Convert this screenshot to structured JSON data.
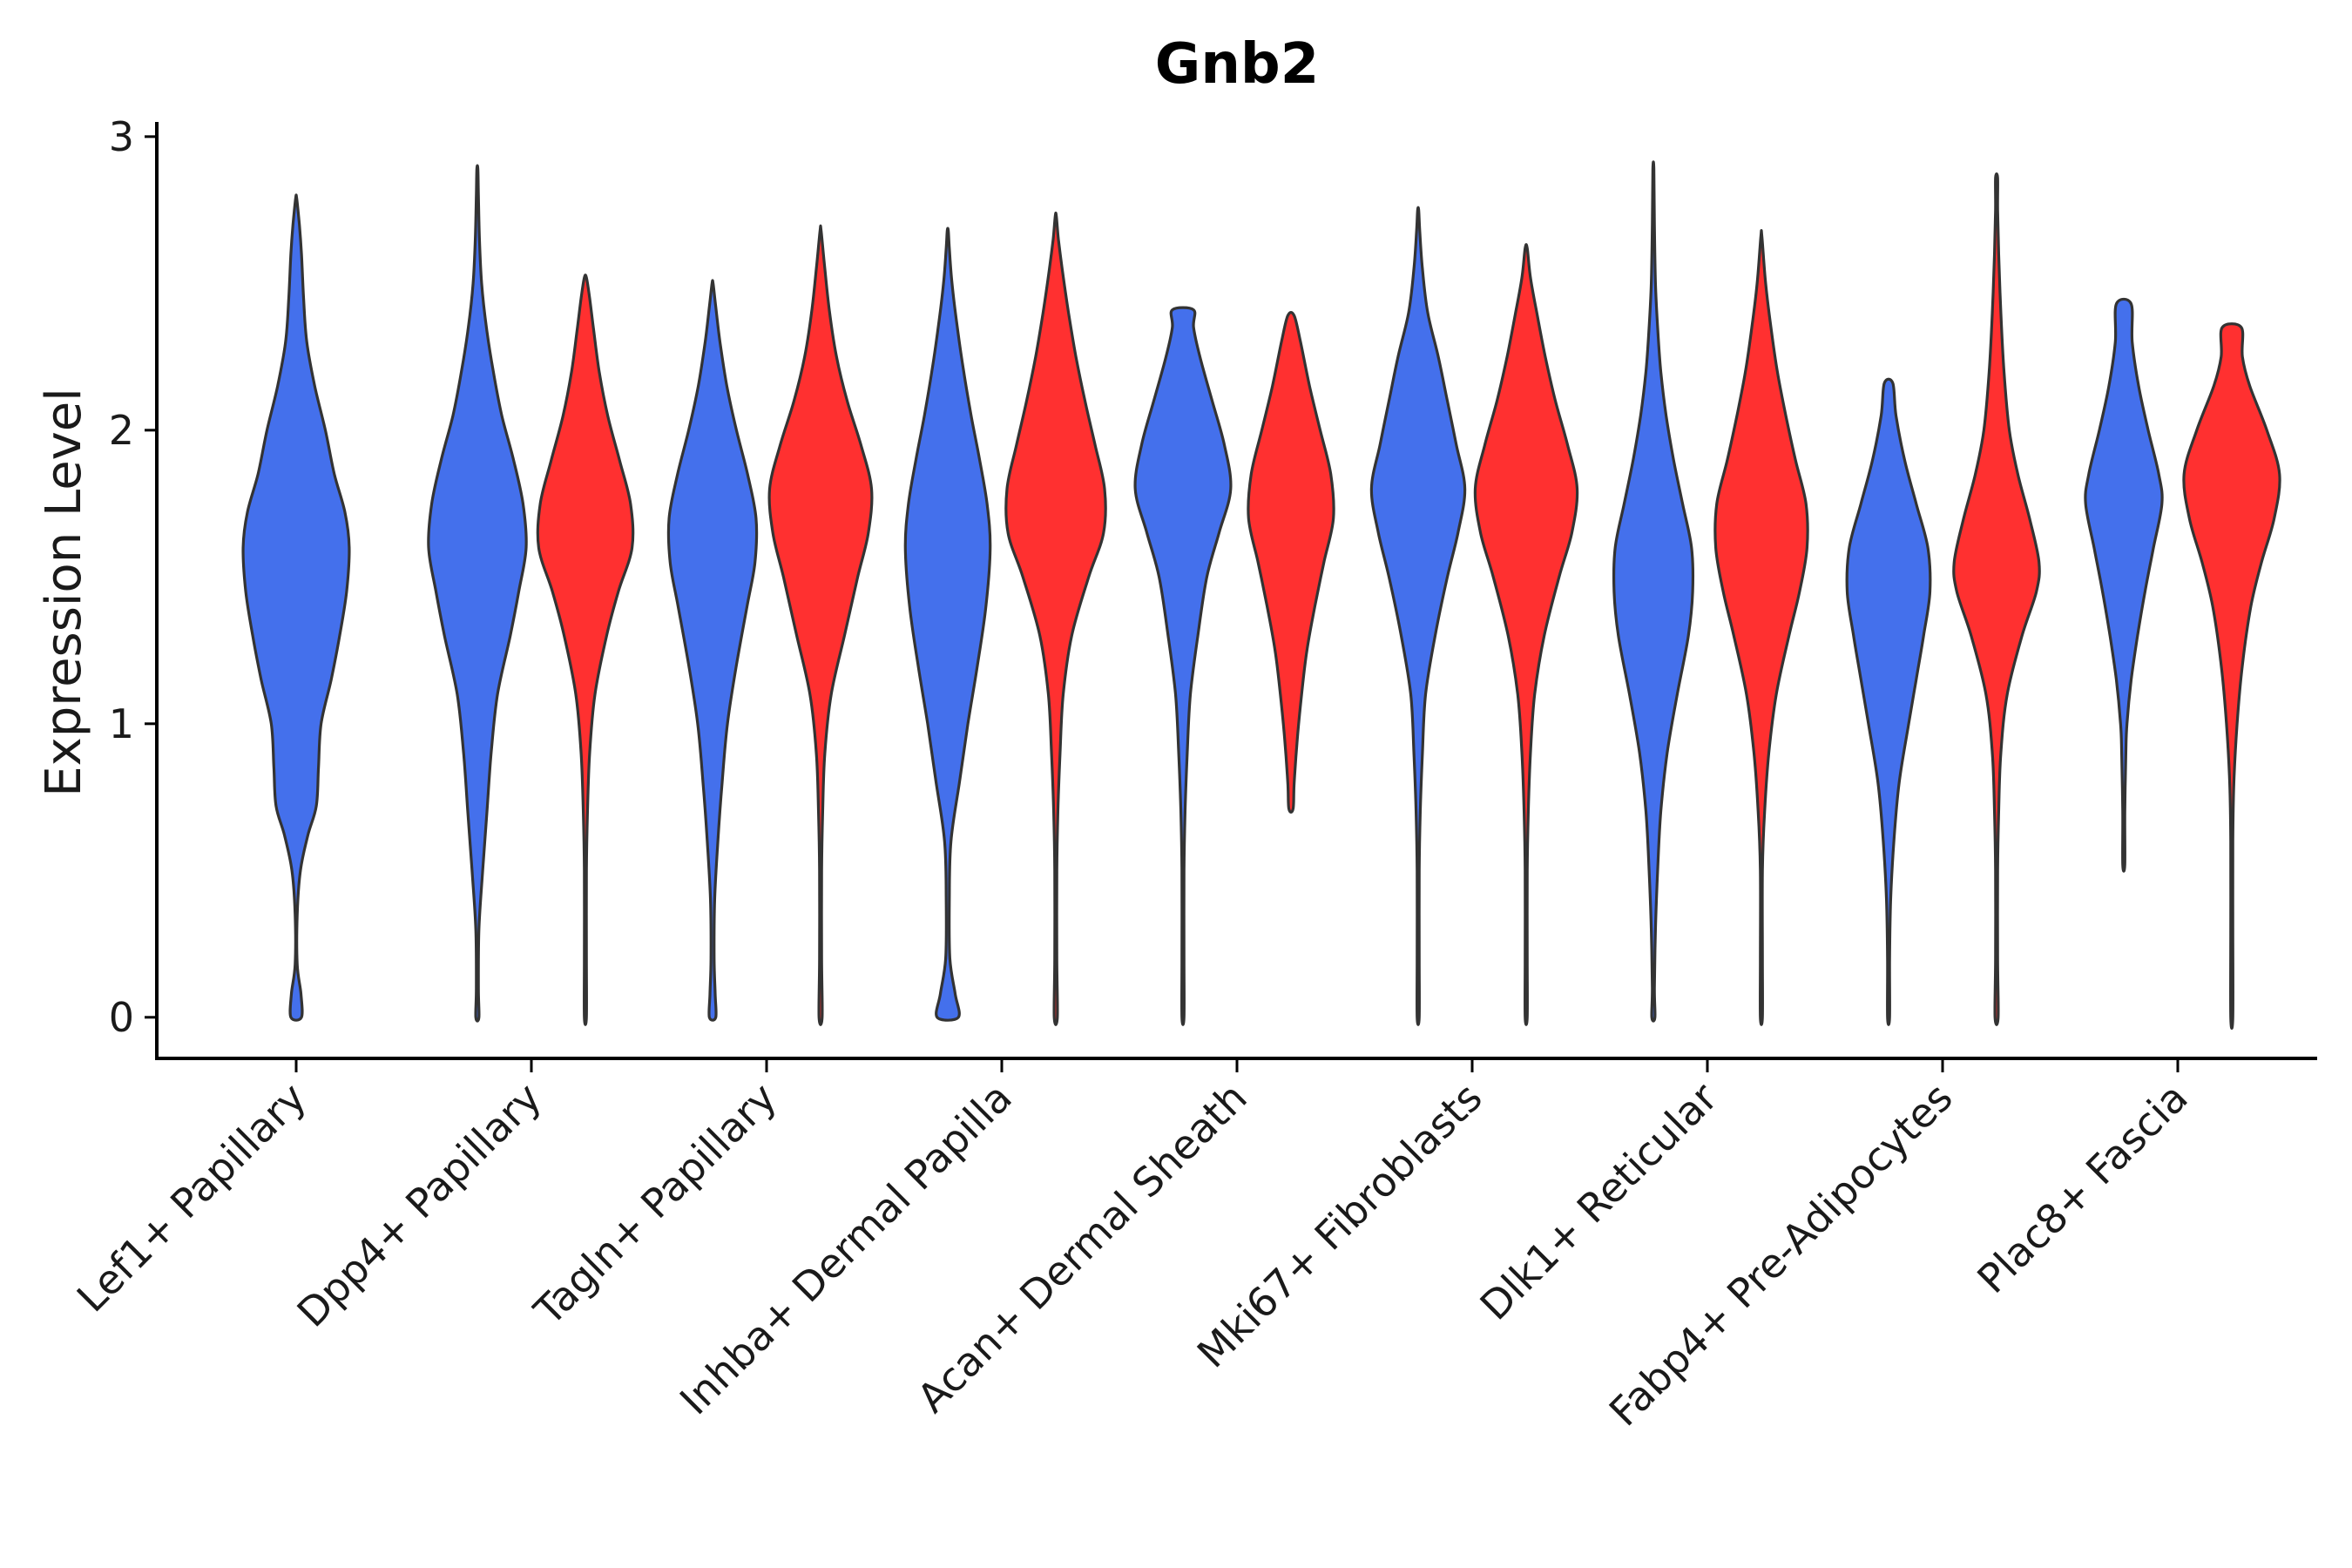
{
  "chart_data": {
    "type": "violin",
    "title": "Gnb2",
    "xlabel": "",
    "ylabel": "Expression Level",
    "ylim": [
      -0.14,
      3.05
    ],
    "yticks": [
      0,
      1,
      2,
      3
    ],
    "grid": false,
    "legend": "none",
    "series_colors": [
      "#4470EC",
      "#FF3030"
    ],
    "categories": [
      "Lef1+ Papillary",
      "Dpp4+ Papillary",
      "Tagln+ Papillary",
      "Inhba+ Dermal Papilla",
      "Acan+ Dermal Sheath",
      "Mki67+ Fibroblasts",
      "Dlk1+ Reticular",
      "Fabp4+ Pre-Adipocytes",
      "Plac8+ Fascia"
    ],
    "violins": [
      {
        "category": "Lef1+ Papillary",
        "group": 1,
        "min": 0.0,
        "max": 2.79,
        "profile": [
          [
            0.0,
            0.1
          ],
          [
            0.08,
            0.09
          ],
          [
            0.18,
            0.02
          ],
          [
            0.35,
            0.02
          ],
          [
            0.5,
            0.08
          ],
          [
            0.62,
            0.22
          ],
          [
            0.72,
            0.38
          ],
          [
            0.85,
            0.42
          ],
          [
            1.0,
            0.47
          ],
          [
            1.15,
            0.66
          ],
          [
            1.3,
            0.82
          ],
          [
            1.45,
            0.95
          ],
          [
            1.6,
            1.0
          ],
          [
            1.72,
            0.92
          ],
          [
            1.85,
            0.72
          ],
          [
            2.0,
            0.55
          ],
          [
            2.15,
            0.35
          ],
          [
            2.3,
            0.2
          ],
          [
            2.45,
            0.14
          ],
          [
            2.6,
            0.1
          ],
          [
            2.7,
            0.06
          ],
          [
            2.79,
            0.01
          ]
        ]
      },
      {
        "category": "Dpp4+ Papillary",
        "group": 1,
        "min": 0.0,
        "max": 2.89,
        "profile": [
          [
            0.0,
            0.03
          ],
          [
            0.1,
            0.02
          ],
          [
            0.3,
            0.03
          ],
          [
            0.5,
            0.1
          ],
          [
            0.7,
            0.18
          ],
          [
            0.9,
            0.26
          ],
          [
            1.1,
            0.38
          ],
          [
            1.3,
            0.62
          ],
          [
            1.45,
            0.78
          ],
          [
            1.6,
            0.92
          ],
          [
            1.75,
            0.86
          ],
          [
            1.9,
            0.68
          ],
          [
            2.05,
            0.46
          ],
          [
            2.2,
            0.3
          ],
          [
            2.35,
            0.17
          ],
          [
            2.5,
            0.08
          ],
          [
            2.65,
            0.04
          ],
          [
            2.8,
            0.02
          ],
          [
            2.89,
            0.01
          ]
        ]
      },
      {
        "category": "Dpp4+ Papillary",
        "group": 2,
        "min": 0.0,
        "max": 2.52,
        "profile": [
          [
            0.0,
            0.02
          ],
          [
            0.2,
            0.02
          ],
          [
            0.5,
            0.02
          ],
          [
            0.7,
            0.04
          ],
          [
            0.9,
            0.08
          ],
          [
            1.1,
            0.18
          ],
          [
            1.3,
            0.4
          ],
          [
            1.45,
            0.62
          ],
          [
            1.6,
            0.88
          ],
          [
            1.75,
            0.85
          ],
          [
            1.9,
            0.64
          ],
          [
            2.05,
            0.42
          ],
          [
            2.2,
            0.26
          ],
          [
            2.35,
            0.15
          ],
          [
            2.45,
            0.08
          ],
          [
            2.52,
            0.02
          ]
        ]
      },
      {
        "category": "Tagln+ Papillary",
        "group": 1,
        "min": 0.0,
        "max": 2.5,
        "profile": [
          [
            0.0,
            0.06
          ],
          [
            0.08,
            0.05
          ],
          [
            0.2,
            0.03
          ],
          [
            0.4,
            0.04
          ],
          [
            0.6,
            0.1
          ],
          [
            0.8,
            0.18
          ],
          [
            1.0,
            0.28
          ],
          [
            1.2,
            0.45
          ],
          [
            1.4,
            0.65
          ],
          [
            1.55,
            0.8
          ],
          [
            1.7,
            0.82
          ],
          [
            1.85,
            0.66
          ],
          [
            2.0,
            0.45
          ],
          [
            2.15,
            0.27
          ],
          [
            2.3,
            0.14
          ],
          [
            2.42,
            0.06
          ],
          [
            2.5,
            0.01
          ]
        ]
      },
      {
        "category": "Tagln+ Papillary",
        "group": 2,
        "min": 0.0,
        "max": 2.68,
        "profile": [
          [
            0.0,
            0.03
          ],
          [
            0.2,
            0.02
          ],
          [
            0.5,
            0.02
          ],
          [
            0.7,
            0.04
          ],
          [
            0.9,
            0.08
          ],
          [
            1.1,
            0.2
          ],
          [
            1.3,
            0.45
          ],
          [
            1.5,
            0.7
          ],
          [
            1.65,
            0.9
          ],
          [
            1.8,
            0.96
          ],
          [
            1.95,
            0.76
          ],
          [
            2.1,
            0.5
          ],
          [
            2.25,
            0.3
          ],
          [
            2.4,
            0.17
          ],
          [
            2.55,
            0.08
          ],
          [
            2.68,
            0.01
          ]
        ]
      },
      {
        "category": "Inhba+ Dermal Papilla",
        "group": 1,
        "min": 0.0,
        "max": 2.68,
        "profile": [
          [
            0.0,
            0.2
          ],
          [
            0.08,
            0.14
          ],
          [
            0.2,
            0.04
          ],
          [
            0.4,
            0.03
          ],
          [
            0.6,
            0.06
          ],
          [
            0.8,
            0.22
          ],
          [
            1.0,
            0.38
          ],
          [
            1.2,
            0.56
          ],
          [
            1.4,
            0.72
          ],
          [
            1.6,
            0.8
          ],
          [
            1.75,
            0.74
          ],
          [
            1.9,
            0.6
          ],
          [
            2.05,
            0.44
          ],
          [
            2.2,
            0.3
          ],
          [
            2.35,
            0.18
          ],
          [
            2.5,
            0.08
          ],
          [
            2.62,
            0.03
          ],
          [
            2.68,
            0.01
          ]
        ]
      },
      {
        "category": "Inhba+ Dermal Papilla",
        "group": 2,
        "min": 0.0,
        "max": 2.73,
        "profile": [
          [
            0.0,
            0.03
          ],
          [
            0.2,
            0.02
          ],
          [
            0.5,
            0.02
          ],
          [
            0.7,
            0.04
          ],
          [
            0.9,
            0.08
          ],
          [
            1.1,
            0.14
          ],
          [
            1.3,
            0.3
          ],
          [
            1.5,
            0.62
          ],
          [
            1.65,
            0.9
          ],
          [
            1.8,
            0.92
          ],
          [
            1.95,
            0.74
          ],
          [
            2.1,
            0.55
          ],
          [
            2.25,
            0.38
          ],
          [
            2.4,
            0.24
          ],
          [
            2.55,
            0.12
          ],
          [
            2.65,
            0.05
          ],
          [
            2.73,
            0.01
          ]
        ]
      },
      {
        "category": "Acan+ Dermal Sheath",
        "group": 1,
        "min": 0.0,
        "max": 2.41,
        "profile": [
          [
            0.0,
            0.02
          ],
          [
            0.2,
            0.02
          ],
          [
            0.5,
            0.02
          ],
          [
            0.7,
            0.04
          ],
          [
            0.9,
            0.08
          ],
          [
            1.1,
            0.14
          ],
          [
            1.3,
            0.28
          ],
          [
            1.5,
            0.45
          ],
          [
            1.65,
            0.68
          ],
          [
            1.8,
            0.9
          ],
          [
            1.95,
            0.78
          ],
          [
            2.1,
            0.55
          ],
          [
            2.25,
            0.32
          ],
          [
            2.35,
            0.2
          ],
          [
            2.41,
            0.2
          ]
        ]
      },
      {
        "category": "Acan+ Dermal Sheath",
        "group": 2,
        "min": 0.71,
        "max": 2.39,
        "profile": [
          [
            0.71,
            0.04
          ],
          [
            0.8,
            0.06
          ],
          [
            0.95,
            0.12
          ],
          [
            1.1,
            0.2
          ],
          [
            1.25,
            0.3
          ],
          [
            1.4,
            0.45
          ],
          [
            1.55,
            0.62
          ],
          [
            1.7,
            0.8
          ],
          [
            1.85,
            0.75
          ],
          [
            2.0,
            0.55
          ],
          [
            2.15,
            0.35
          ],
          [
            2.3,
            0.18
          ],
          [
            2.39,
            0.06
          ]
        ]
      },
      {
        "category": "Mki67+ Fibroblasts",
        "group": 1,
        "min": 0.0,
        "max": 2.75,
        "profile": [
          [
            0.0,
            0.02
          ],
          [
            0.2,
            0.02
          ],
          [
            0.5,
            0.02
          ],
          [
            0.7,
            0.04
          ],
          [
            0.9,
            0.08
          ],
          [
            1.1,
            0.14
          ],
          [
            1.3,
            0.32
          ],
          [
            1.5,
            0.55
          ],
          [
            1.65,
            0.75
          ],
          [
            1.8,
            0.88
          ],
          [
            1.95,
            0.72
          ],
          [
            2.1,
            0.55
          ],
          [
            2.25,
            0.38
          ],
          [
            2.4,
            0.18
          ],
          [
            2.55,
            0.08
          ],
          [
            2.68,
            0.03
          ],
          [
            2.75,
            0.01
          ]
        ]
      },
      {
        "category": "Mki67+ Fibroblasts",
        "group": 2,
        "min": 0.0,
        "max": 2.62,
        "profile": [
          [
            0.0,
            0.02
          ],
          [
            0.2,
            0.02
          ],
          [
            0.5,
            0.02
          ],
          [
            0.7,
            0.04
          ],
          [
            0.9,
            0.08
          ],
          [
            1.1,
            0.16
          ],
          [
            1.3,
            0.34
          ],
          [
            1.5,
            0.62
          ],
          [
            1.65,
            0.86
          ],
          [
            1.8,
            0.96
          ],
          [
            1.95,
            0.78
          ],
          [
            2.1,
            0.55
          ],
          [
            2.25,
            0.36
          ],
          [
            2.4,
            0.2
          ],
          [
            2.52,
            0.08
          ],
          [
            2.62,
            0.02
          ]
        ]
      },
      {
        "category": "Dlk1+ Reticular",
        "group": 1,
        "min": 0.0,
        "max": 2.89,
        "profile": [
          [
            0.0,
            0.03
          ],
          [
            0.1,
            0.02
          ],
          [
            0.3,
            0.04
          ],
          [
            0.5,
            0.08
          ],
          [
            0.7,
            0.14
          ],
          [
            0.9,
            0.26
          ],
          [
            1.1,
            0.45
          ],
          [
            1.3,
            0.66
          ],
          [
            1.45,
            0.74
          ],
          [
            1.6,
            0.72
          ],
          [
            1.75,
            0.55
          ],
          [
            1.9,
            0.38
          ],
          [
            2.05,
            0.24
          ],
          [
            2.2,
            0.14
          ],
          [
            2.35,
            0.08
          ],
          [
            2.5,
            0.04
          ],
          [
            2.7,
            0.02
          ],
          [
            2.89,
            0.01
          ]
        ]
      },
      {
        "category": "Dlk1+ Reticular",
        "group": 2,
        "min": 0.0,
        "max": 2.66,
        "profile": [
          [
            0.0,
            0.02
          ],
          [
            0.2,
            0.02
          ],
          [
            0.5,
            0.02
          ],
          [
            0.7,
            0.06
          ],
          [
            0.9,
            0.14
          ],
          [
            1.1,
            0.28
          ],
          [
            1.3,
            0.52
          ],
          [
            1.45,
            0.72
          ],
          [
            1.6,
            0.86
          ],
          [
            1.75,
            0.84
          ],
          [
            1.9,
            0.64
          ],
          [
            2.05,
            0.46
          ],
          [
            2.2,
            0.3
          ],
          [
            2.35,
            0.18
          ],
          [
            2.5,
            0.08
          ],
          [
            2.66,
            0.01
          ]
        ]
      },
      {
        "category": "Fabp4+ Pre-Adipocytes",
        "group": 1,
        "min": 0.0,
        "max": 2.16,
        "profile": [
          [
            0.0,
            0.02
          ],
          [
            0.2,
            0.02
          ],
          [
            0.4,
            0.04
          ],
          [
            0.6,
            0.1
          ],
          [
            0.8,
            0.2
          ],
          [
            1.0,
            0.38
          ],
          [
            1.15,
            0.52
          ],
          [
            1.3,
            0.66
          ],
          [
            1.45,
            0.78
          ],
          [
            1.6,
            0.74
          ],
          [
            1.75,
            0.52
          ],
          [
            1.9,
            0.3
          ],
          [
            2.05,
            0.14
          ],
          [
            2.16,
            0.08
          ]
        ]
      },
      {
        "category": "Fabp4+ Pre-Adipocytes",
        "group": 2,
        "min": 0.0,
        "max": 2.86,
        "profile": [
          [
            0.0,
            0.03
          ],
          [
            0.2,
            0.02
          ],
          [
            0.5,
            0.02
          ],
          [
            0.7,
            0.04
          ],
          [
            0.9,
            0.08
          ],
          [
            1.1,
            0.2
          ],
          [
            1.3,
            0.48
          ],
          [
            1.45,
            0.75
          ],
          [
            1.55,
            0.8
          ],
          [
            1.7,
            0.62
          ],
          [
            1.85,
            0.4
          ],
          [
            2.0,
            0.24
          ],
          [
            2.2,
            0.14
          ],
          [
            2.4,
            0.08
          ],
          [
            2.6,
            0.04
          ],
          [
            2.75,
            0.02
          ],
          [
            2.86,
            0.02
          ]
        ]
      },
      {
        "category": "Plac8+ Fascia",
        "group": 1,
        "min": 0.52,
        "max": 2.43,
        "profile": [
          [
            0.52,
            0.02
          ],
          [
            0.7,
            0.02
          ],
          [
            0.9,
            0.04
          ],
          [
            1.0,
            0.06
          ],
          [
            1.15,
            0.14
          ],
          [
            1.3,
            0.26
          ],
          [
            1.45,
            0.4
          ],
          [
            1.6,
            0.56
          ],
          [
            1.75,
            0.72
          ],
          [
            1.85,
            0.66
          ],
          [
            2.0,
            0.46
          ],
          [
            2.15,
            0.28
          ],
          [
            2.3,
            0.16
          ],
          [
            2.43,
            0.14
          ]
        ]
      },
      {
        "category": "Plac8+ Fascia",
        "group": 2,
        "min": 0.0,
        "max": 2.35,
        "profile": [
          [
            0.0,
            0.02
          ],
          [
            0.3,
            0.02
          ],
          [
            0.6,
            0.02
          ],
          [
            0.8,
            0.04
          ],
          [
            1.0,
            0.1
          ],
          [
            1.2,
            0.2
          ],
          [
            1.4,
            0.36
          ],
          [
            1.55,
            0.56
          ],
          [
            1.7,
            0.8
          ],
          [
            1.85,
            0.9
          ],
          [
            2.0,
            0.66
          ],
          [
            2.15,
            0.34
          ],
          [
            2.25,
            0.2
          ],
          [
            2.35,
            0.18
          ]
        ]
      }
    ]
  }
}
